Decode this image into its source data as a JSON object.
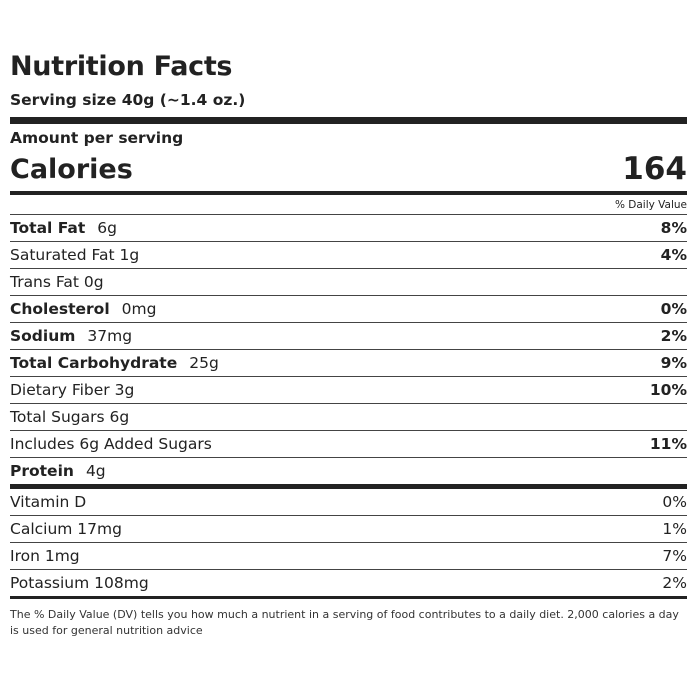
{
  "title": "Nutrition Facts",
  "serving_size": "Serving size 40g (~1.4 oz.)",
  "amount_per_serving": "Amount per serving",
  "calories": {
    "label": "Calories",
    "value": "164"
  },
  "daily_value_header": "% Daily Value",
  "nutrients": [
    {
      "name": "Total Fat",
      "amount": "6g",
      "dv": "8%"
    },
    {
      "name": "Saturated Fat 1g",
      "dv": "4%"
    },
    {
      "name": "Trans Fat 0g",
      "dv": ""
    },
    {
      "name": "Cholesterol",
      "amount": "0mg",
      "dv": "0%"
    },
    {
      "name": "Sodium",
      "amount": "37mg",
      "dv": "2%"
    },
    {
      "name": "Total Carbohydrate",
      "amount": "25g",
      "dv": "9%"
    },
    {
      "name": "Dietary Fiber 3g",
      "dv": "10%"
    },
    {
      "name": "Total Sugars 6g",
      "dv": ""
    },
    {
      "name": "Includes 6g Added Sugars",
      "dv": "11%"
    },
    {
      "name": "Protein",
      "amount": "4g",
      "dv": ""
    }
  ],
  "vitamins": [
    {
      "name": "Vitamin D",
      "dv": "0%"
    },
    {
      "name": "Calcium 17mg",
      "dv": "1%"
    },
    {
      "name": "Iron 1mg",
      "dv": "7%"
    },
    {
      "name": "Potassium 108mg",
      "dv": "2%"
    }
  ],
  "footnote": "The % Daily Value (DV) tells you how much a nutrient in a serving of food contributes to a daily diet. 2,000 calories a day is used for general nutrition advice"
}
